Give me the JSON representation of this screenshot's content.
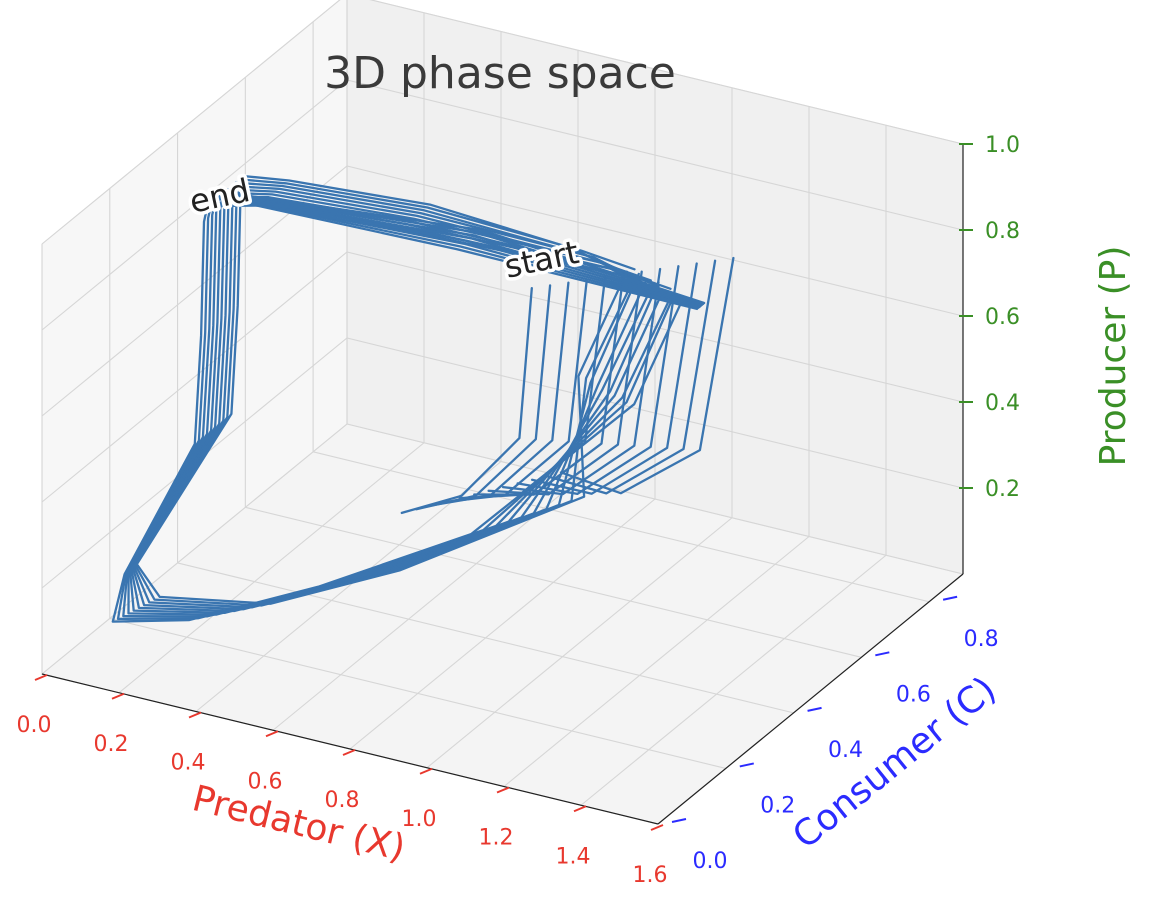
{
  "chart_data": {
    "type": "line",
    "projection": "3d",
    "title": "3D phase space",
    "xlabel": "Predator (X)",
    "ylabel": "Consumer (C)",
    "zlabel": "Producer (P)",
    "xlim": [
      0.0,
      1.6
    ],
    "ylim": [
      0.0,
      0.9
    ],
    "zlim": [
      0.0,
      1.0
    ],
    "xticks": [
      "0.0",
      "0.2",
      "0.4",
      "0.6",
      "0.8",
      "1.0",
      "1.2",
      "1.4",
      "1.6"
    ],
    "yticks": [
      "0.0",
      "0.2",
      "0.4",
      "0.6",
      "0.8"
    ],
    "zticks": [
      "0.2",
      "0.4",
      "0.6",
      "0.8",
      "1.0"
    ],
    "grid": true,
    "colors": {
      "line": "#3a75b0",
      "x_axis": "#e8382e",
      "y_axis": "#2b2bff",
      "z_axis": "#3a8f26"
    },
    "annotations": [
      {
        "text": "start",
        "x": 0.67,
        "y": 0.72,
        "z": 0.62
      },
      {
        "text": "end",
        "x": 0.08,
        "y": 0.44,
        "z": 0.82
      }
    ],
    "series": [
      {
        "x_range": [
          0.05,
          1.05
        ],
        "y_range": [
          0.05,
          0.82
        ],
        "z_range": [
          0.1,
          0.83
        ],
        "loops": 10,
        "loop_peaks_x": [
          1.03,
          1.01,
          0.99,
          0.97,
          0.95,
          0.93,
          0.91,
          0.89,
          0.87,
          0.85
        ],
        "loop_peaks_y": [
          0.72,
          0.72,
          0.73,
          0.73,
          0.74,
          0.74,
          0.75,
          0.75,
          0.76,
          0.76
        ]
      }
    ]
  }
}
